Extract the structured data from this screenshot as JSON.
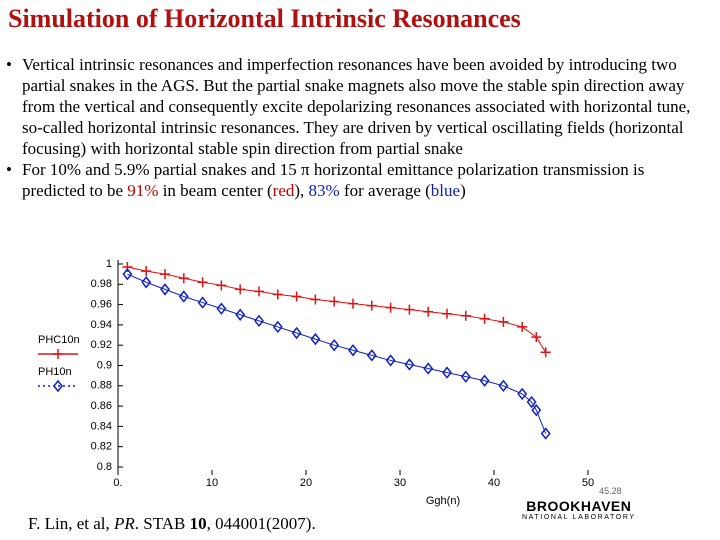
{
  "header": {
    "title": "Simulation of Horizontal Intrinsic Resonances",
    "color": "#b01010"
  },
  "bullets": [
    {
      "parts": [
        {
          "text": "Vertical intrinsic resonances and imperfection resonances have been avoided by introducing two partial snakes in the AGS. But the partial snake magnets also move the stable spin direction away from the vertical and consequently excite depolarizing resonances associated with horizontal tune, so-called horizontal intrinsic resonances. They are driven by vertical oscillating fields (horizontal focusing) with horizontal stable spin direction from partial snake"
        }
      ]
    },
    {
      "parts": [
        {
          "text": "For 10% and 5.9% partial snakes and 15 π horizontal emittance polarization transmission is predicted to be "
        },
        {
          "text": "91%",
          "color": "#c00000"
        },
        {
          "text": " in beam center ("
        },
        {
          "text": "red",
          "color": "#c00000"
        },
        {
          "text": "), "
        },
        {
          "text": "83%",
          "color": "#1020b0"
        },
        {
          "text": " for average ("
        },
        {
          "text": "blue",
          "color": "#1020b0"
        },
        {
          "text": ")"
        }
      ]
    }
  ],
  "citation": [
    {
      "text": "F. Lin, et al, "
    },
    {
      "text": "PR",
      "style": "italic"
    },
    {
      "text": ". STAB "
    },
    {
      "text": "10",
      "style": "bold"
    },
    {
      "text": ", 044001(2007)."
    }
  ],
  "logo": {
    "name": "BROOKHAVEN",
    "subtitle": "NATIONAL LABORATORY",
    "note": "45.28"
  },
  "chart_data": {
    "type": "line",
    "x_label": "Ggh(n)",
    "xlim": [
      0,
      50
    ],
    "xticks": [
      {
        "value": 0,
        "label": "0."
      },
      10,
      20,
      30,
      40,
      50
    ],
    "ylim": [
      0.8,
      1
    ],
    "yticks": [
      0.8,
      0.82,
      0.84,
      0.86,
      0.88,
      0.9,
      0.92,
      0.94,
      0.96,
      0.98,
      1
    ],
    "series": [
      {
        "name": "PHC10n",
        "color": "#e01010",
        "marker": "plus",
        "x": [
          1,
          3,
          5,
          7,
          9,
          11,
          13,
          15,
          17,
          19,
          21,
          23,
          25,
          27,
          29,
          31,
          33,
          35,
          37,
          39,
          41,
          43,
          44.5,
          45.5
        ],
        "values": [
          0.997,
          0.993,
          0.99,
          0.986,
          0.982,
          0.979,
          0.975,
          0.973,
          0.97,
          0.968,
          0.965,
          0.963,
          0.961,
          0.959,
          0.957,
          0.955,
          0.953,
          0.951,
          0.949,
          0.946,
          0.943,
          0.938,
          0.928,
          0.913
        ]
      },
      {
        "name": "PH10n",
        "color": "#1020c0",
        "marker": "diamond",
        "x": [
          1,
          3,
          5,
          7,
          9,
          11,
          13,
          15,
          17,
          19,
          21,
          23,
          25,
          27,
          29,
          31,
          33,
          35,
          37,
          39,
          41,
          43,
          44,
          44.5,
          45.5
        ],
        "values": [
          0.99,
          0.982,
          0.975,
          0.968,
          0.962,
          0.956,
          0.95,
          0.944,
          0.938,
          0.932,
          0.926,
          0.92,
          0.915,
          0.91,
          0.905,
          0.901,
          0.897,
          0.893,
          0.889,
          0.885,
          0.88,
          0.872,
          0.864,
          0.856,
          0.833
        ]
      }
    ]
  }
}
